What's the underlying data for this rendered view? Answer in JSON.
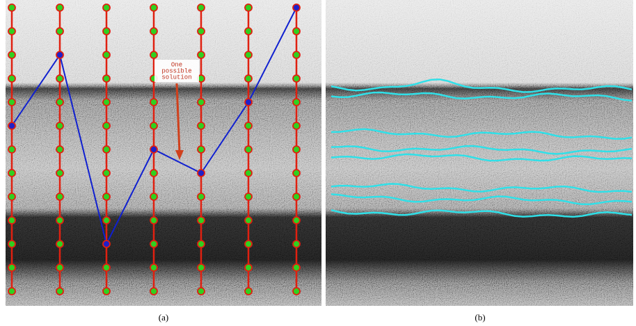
{
  "annotation": {
    "lines": [
      "One",
      "possible",
      "solution"
    ]
  },
  "captions": {
    "a": "(a)",
    "b": "(b)"
  }
}
